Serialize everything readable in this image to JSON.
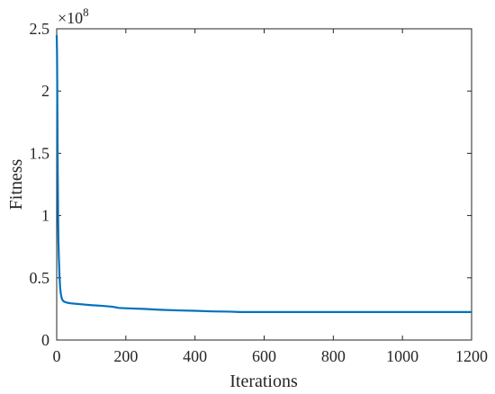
{
  "chart_data": {
    "type": "line",
    "title": "",
    "xlabel": "Iterations",
    "ylabel": "Fitness",
    "y_exponent_label": "×10",
    "y_exponent": "8",
    "xlim": [
      0,
      1200
    ],
    "ylim": [
      0,
      2.5
    ],
    "xticks": [
      0,
      200,
      400,
      600,
      800,
      1000,
      1200
    ],
    "yticks": [
      0,
      0.5,
      1,
      1.5,
      2,
      2.5
    ],
    "ytick_labels": [
      "0",
      "0.5",
      "1",
      "1.5",
      "2",
      "2.5"
    ],
    "grid": false,
    "series": [
      {
        "color": "#0072BD",
        "x": [
          0,
          1,
          2,
          3,
          4,
          5,
          6,
          8,
          10,
          12,
          15,
          20,
          25,
          30,
          40,
          60,
          80,
          100,
          130,
          160,
          180,
          200,
          250,
          300,
          350,
          400,
          450,
          500,
          530,
          600,
          700,
          800,
          900,
          1000,
          1100,
          1200
        ],
        "y": [
          2.45,
          2.3,
          1.85,
          1.35,
          1.0,
          0.8,
          0.68,
          0.52,
          0.42,
          0.37,
          0.33,
          0.31,
          0.305,
          0.3,
          0.295,
          0.29,
          0.285,
          0.28,
          0.275,
          0.268,
          0.258,
          0.255,
          0.25,
          0.243,
          0.238,
          0.235,
          0.23,
          0.228,
          0.225,
          0.225,
          0.225,
          0.225,
          0.225,
          0.225,
          0.225,
          0.225
        ]
      }
    ]
  }
}
